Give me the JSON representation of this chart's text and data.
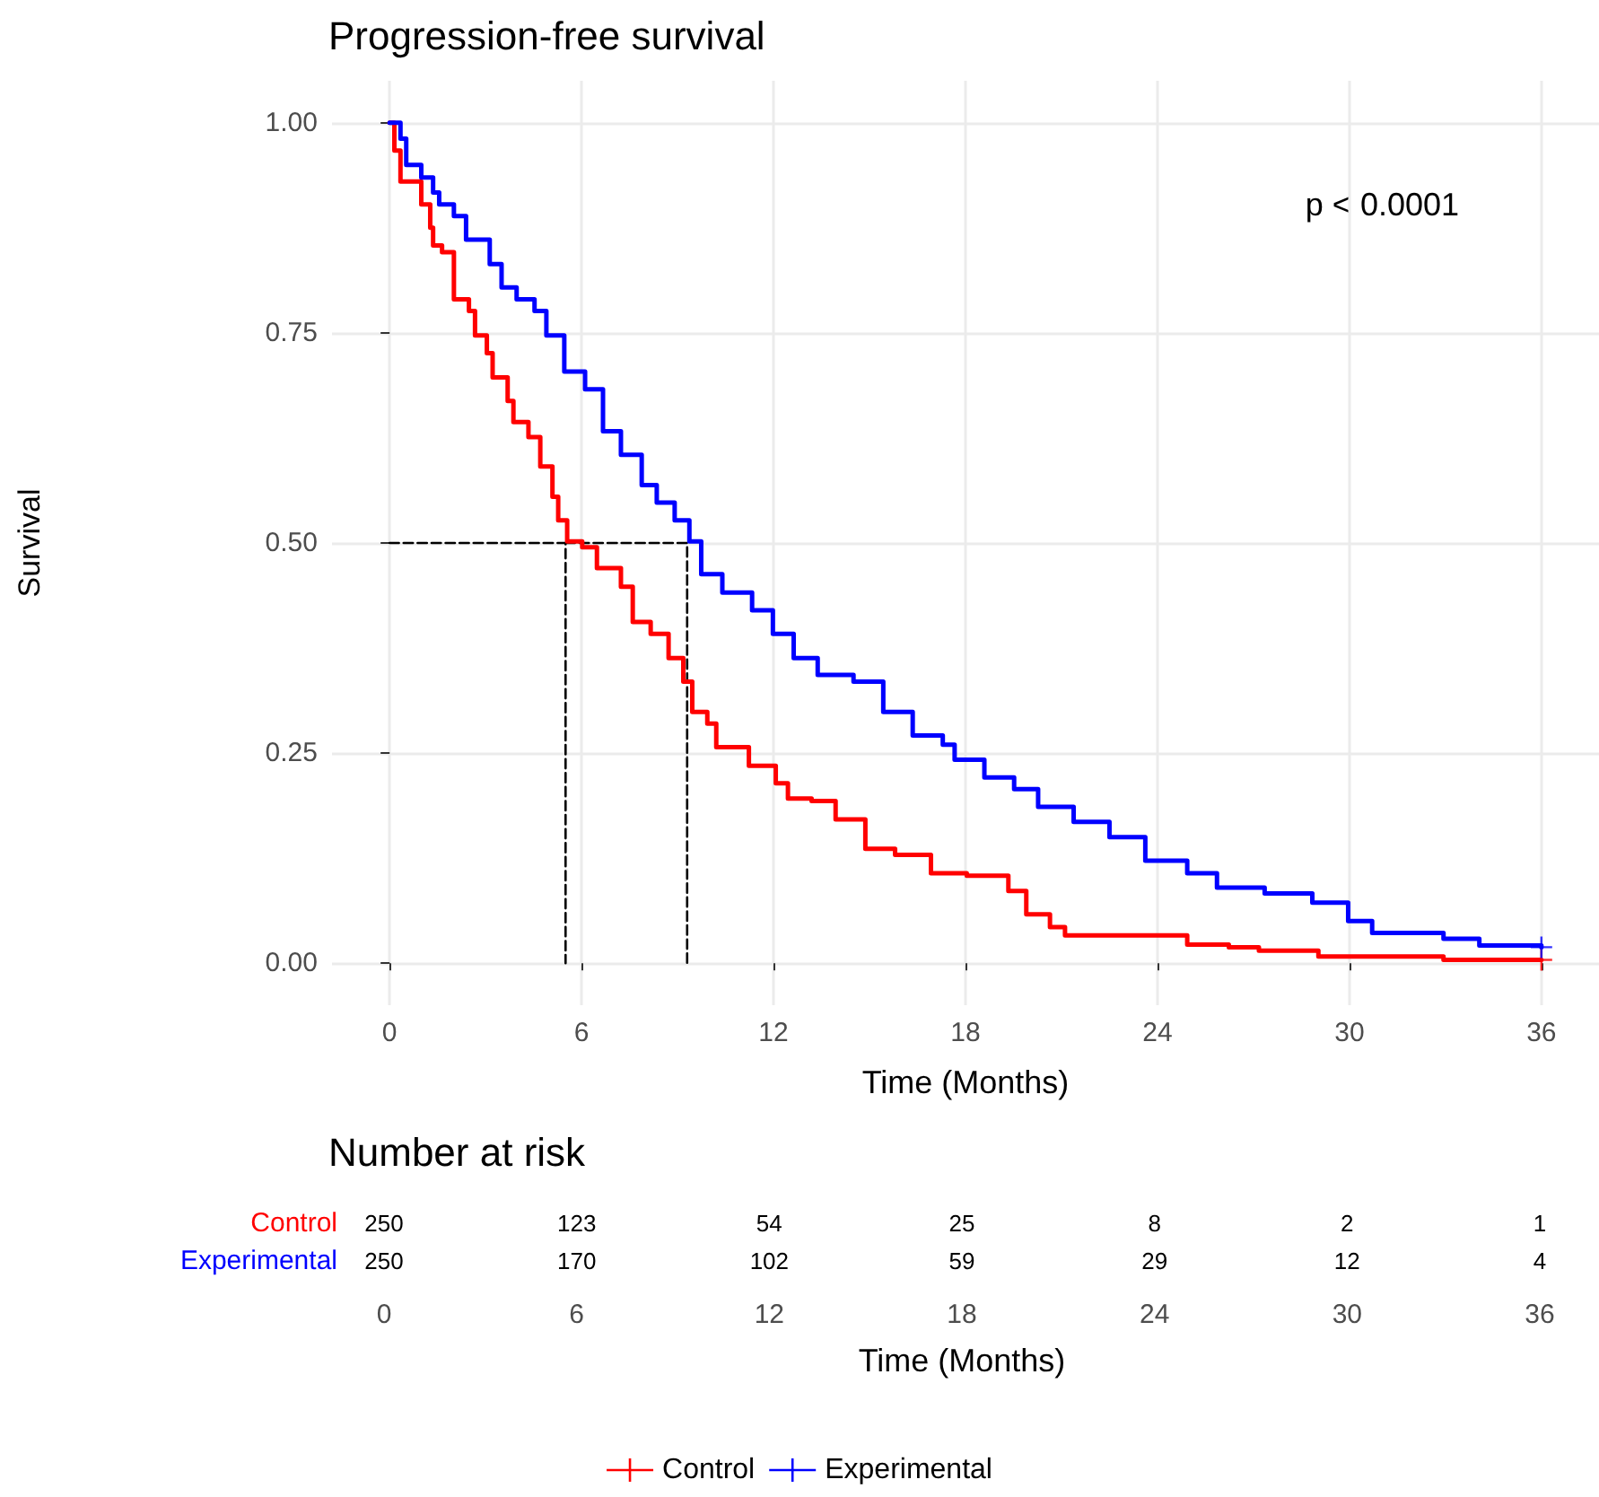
{
  "chart_data": [
    {
      "type": "step",
      "title": "Progression-free survival",
      "xlabel": "Time (Months)",
      "ylabel": "Survival",
      "annotations": [
        "p < 0.0001"
      ],
      "xlim": [
        -1.8,
        37.8
      ],
      "xticks": [
        0,
        6,
        12,
        18,
        24,
        30,
        36
      ],
      "ylim": [
        -0.05,
        1.05
      ],
      "yticks": [
        {
          "value": 0,
          "label": "0.00"
        },
        {
          "value": 0.25,
          "label": "0.25"
        },
        {
          "value": 0.5,
          "label": "0.50"
        },
        {
          "value": 0.75,
          "label": "0.75"
        },
        {
          "value": 1,
          "label": "1.00"
        }
      ],
      "grid": true,
      "legend": "bottom",
      "series": [
        {
          "name": "Control",
          "color": "#ff0000",
          "x": [
            0,
            0.15,
            0.34,
            0.9,
            0.99,
            1.27,
            1.36,
            1.64,
            2.01,
            2.48,
            2.67,
            3.04,
            3.22,
            3.69,
            3.87,
            4.34,
            4.71,
            5.09,
            5.27,
            5.55,
            6.02,
            6.48,
            7.23,
            7.6,
            8.16,
            8.72,
            9.18,
            9.46,
            9.93,
            10.21,
            11.23,
            12.07,
            12.45,
            13.19,
            13.94,
            14.87,
            15.8,
            16.92,
            18.04,
            19.34,
            19.9,
            20.64,
            21.11,
            24.93,
            26.23,
            27.17,
            29.03,
            32.94,
            36
          ],
          "values": [
            1,
            0.967,
            0.93,
            0.93,
            0.903,
            0.875,
            0.854,
            0.846,
            0.79,
            0.776,
            0.747,
            0.726,
            0.697,
            0.669,
            0.644,
            0.626,
            0.591,
            0.555,
            0.527,
            0.502,
            0.495,
            0.47,
            0.448,
            0.406,
            0.392,
            0.363,
            0.335,
            0.299,
            0.285,
            0.257,
            0.235,
            0.214,
            0.196,
            0.193,
            0.171,
            0.136,
            0.129,
            0.107,
            0.104,
            0.086,
            0.058,
            0.043,
            0.033,
            0.022,
            0.019,
            0.015,
            0.008,
            0.004,
            0.004
          ]
        },
        {
          "name": "Experimental",
          "color": "#0000ff",
          "x": [
            0,
            0.34,
            0.52,
            0.99,
            1.36,
            1.55,
            2.01,
            2.39,
            3.13,
            3.5,
            3.97,
            4.53,
            4.9,
            5.46,
            6.11,
            6.67,
            7.23,
            7.88,
            8.35,
            8.91,
            9.37,
            9.74,
            10.4,
            11.33,
            11.98,
            12.63,
            13.38,
            14.5,
            15.43,
            16.35,
            17.29,
            17.66,
            18.59,
            19.52,
            20.27,
            21.38,
            22.5,
            23.62,
            24.93,
            25.86,
            27.35,
            28.84,
            29.96,
            30.71,
            32.94,
            34.06,
            36
          ],
          "values": [
            1,
            0.981,
            0.95,
            0.935,
            0.917,
            0.903,
            0.889,
            0.861,
            0.832,
            0.804,
            0.79,
            0.776,
            0.747,
            0.704,
            0.683,
            0.633,
            0.605,
            0.569,
            0.548,
            0.527,
            0.502,
            0.463,
            0.441,
            0.42,
            0.392,
            0.363,
            0.343,
            0.335,
            0.299,
            0.271,
            0.26,
            0.242,
            0.221,
            0.207,
            0.186,
            0.168,
            0.15,
            0.122,
            0.107,
            0.09,
            0.083,
            0.072,
            0.05,
            0.036,
            0.029,
            0.021,
            0.019
          ]
        },
        {
          "type": "scatter",
          "marker": "cross",
          "color": "#ff0000",
          "x": [
            36
          ],
          "values": [
            0.004
          ]
        },
        {
          "type": "scatter",
          "marker": "cross",
          "color": "#0000ff",
          "x": [
            36
          ],
          "values": [
            0.019
          ]
        },
        {
          "type": "line",
          "line_style": "dashed",
          "color": "#000000",
          "x": [
            0,
            5.5,
            5.5
          ],
          "values": [
            0.5,
            0.5,
            0
          ]
        },
        {
          "type": "line",
          "line_style": "dashed",
          "color": "#000000",
          "x": [
            5.5,
            9.3,
            9.3
          ],
          "values": [
            0.5,
            0.5,
            0
          ]
        }
      ]
    },
    {
      "type": "heatmap",
      "title": "Number at risk",
      "xlabel": "Time (Months)",
      "data_labels": true,
      "categories": [
        "0",
        "6",
        "12",
        "18",
        "24",
        "30",
        "36"
      ],
      "y_categories": [
        "Control",
        "Experimental"
      ],
      "cells": [
        [
          250,
          123,
          54,
          25,
          8,
          2,
          1
        ],
        [
          250,
          170,
          102,
          59,
          29,
          12,
          4
        ]
      ]
    }
  ]
}
